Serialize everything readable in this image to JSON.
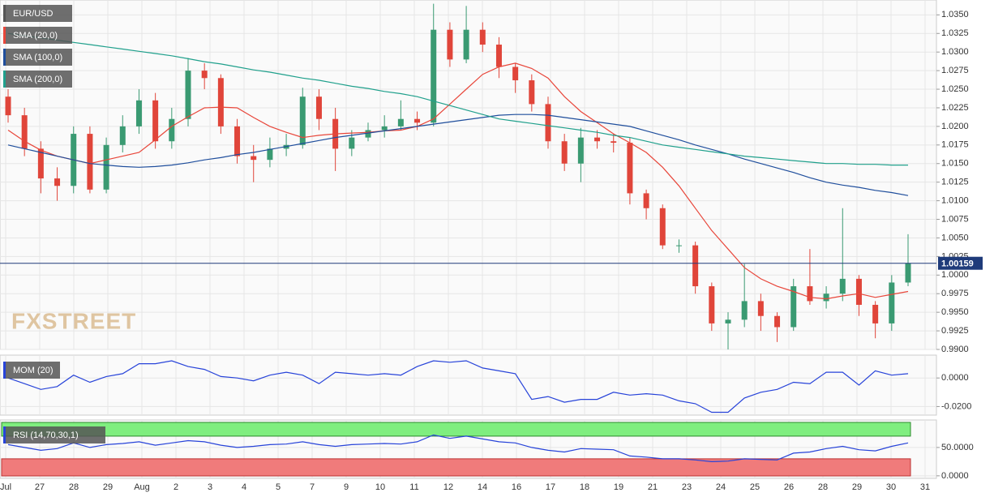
{
  "chart_data": [
    {
      "type": "candlestick",
      "title": "EUR/USD",
      "open": [
        1.024,
        1.0215,
        1.017,
        1.013,
        1.012,
        1.019,
        1.0115,
        1.0175,
        1.02,
        1.0235,
        1.018,
        1.021,
        1.0275,
        1.0265,
        1.02,
        1.016,
        1.0155,
        1.017,
        1.0175,
        1.024,
        1.021,
        1.017,
        1.0185,
        1.0195,
        1.02,
        1.021,
        1.0205,
        1.033,
        1.029,
        1.033,
        1.031,
        1.028,
        1.0262,
        1.023,
        1.018,
        1.015,
        1.0185,
        1.018,
        1.0178,
        1.011,
        1.009,
        1.004,
        1.004,
        0.9985,
        0.9935,
        0.994,
        0.9965,
        0.9945,
        0.993,
        0.9985,
        0.9965,
        0.9975,
        0.9995,
        0.996,
        0.9935,
        0.999
      ],
      "high": [
        1.025,
        1.0225,
        1.018,
        1.0145,
        1.02,
        1.02,
        1.0185,
        1.0215,
        1.025,
        1.0245,
        1.0225,
        1.0292,
        1.0285,
        1.027,
        1.021,
        1.0175,
        1.0185,
        1.019,
        1.0252,
        1.025,
        1.0225,
        1.0195,
        1.0205,
        1.0215,
        1.0235,
        1.022,
        1.0365,
        1.034,
        1.0362,
        1.034,
        1.032,
        1.0285,
        1.027,
        1.024,
        1.019,
        1.0198,
        1.0195,
        1.019,
        1.0185,
        1.0115,
        1.0095,
        1.0048,
        1.0045,
        0.999,
        0.995,
        1.0015,
        0.9975,
        0.995,
        0.9995,
        1.0035,
        0.9985,
        1.009,
        1.0,
        0.9965,
        1.0,
        1.0055
      ],
      "low": [
        1.0205,
        1.016,
        1.011,
        1.01,
        1.011,
        1.011,
        1.011,
        1.0165,
        1.019,
        1.017,
        1.017,
        1.02,
        1.025,
        1.019,
        1.015,
        1.0125,
        1.0145,
        1.016,
        1.017,
        1.0195,
        1.014,
        1.016,
        1.018,
        1.0185,
        1.0195,
        1.0195,
        1.02,
        1.028,
        1.0285,
        1.03,
        1.0265,
        1.0245,
        1.022,
        1.017,
        1.014,
        1.0125,
        1.017,
        1.0165,
        1.0095,
        1.0075,
        1.0035,
        1.003,
        0.9975,
        0.9925,
        0.99,
        0.993,
        0.9925,
        0.991,
        0.9925,
        0.996,
        0.9955,
        0.9965,
        0.9945,
        0.9915,
        0.9925,
        0.9985
      ],
      "close": [
        1.0215,
        1.017,
        1.013,
        1.012,
        1.019,
        1.0115,
        1.0175,
        1.02,
        1.0235,
        1.018,
        1.021,
        1.0275,
        1.0265,
        1.02,
        1.016,
        1.0155,
        1.017,
        1.0175,
        1.024,
        1.021,
        1.017,
        1.0185,
        1.0195,
        1.02,
        1.021,
        1.0205,
        1.033,
        1.029,
        1.033,
        1.031,
        1.028,
        1.0262,
        1.023,
        1.018,
        1.015,
        1.0185,
        1.018,
        1.0178,
        1.011,
        1.009,
        1.004,
        1.004,
        0.9985,
        0.9935,
        0.994,
        0.9965,
        0.9945,
        0.993,
        0.9985,
        0.9965,
        0.9975,
        0.9995,
        0.996,
        0.9935,
        0.999,
        1.0016
      ],
      "up_color": "#3a9a72",
      "down_color": "#e0453a",
      "series": [
        {
          "name": "SMA (20,0)",
          "color": "#e8463a",
          "values": [
            1.0195,
            1.018,
            1.0168,
            1.016,
            1.0155,
            1.015,
            1.0155,
            1.016,
            1.0165,
            1.0182,
            1.02,
            1.0213,
            1.0225,
            1.0226,
            1.0225,
            1.0212,
            1.02,
            1.0192,
            1.0185,
            1.0188,
            1.019,
            1.0191,
            1.0192,
            1.0194,
            1.0195,
            1.02,
            1.021,
            1.023,
            1.025,
            1.027,
            1.028,
            1.0285,
            1.0278,
            1.0265,
            1.024,
            1.022,
            1.0205,
            1.019,
            1.0178,
            1.0165,
            1.0145,
            1.012,
            1.009,
            1.006,
            1.0035,
            1.001,
            0.9995,
            0.9985,
            0.9978,
            0.997,
            0.9968,
            0.9972,
            0.9975,
            0.997,
            0.9974,
            0.9978
          ]
        },
        {
          "name": "SMA (100,0)",
          "color": "#1f4e9c",
          "values": [
            1.0175,
            1.017,
            1.0165,
            1.016,
            1.0155,
            1.015,
            1.0148,
            1.0146,
            1.0145,
            1.0146,
            1.0148,
            1.0151,
            1.0155,
            1.0158,
            1.0162,
            1.0165,
            1.0169,
            1.0173,
            1.0177,
            1.0181,
            1.0185,
            1.0188,
            1.0191,
            1.0194,
            1.0197,
            1.02,
            1.0203,
            1.0206,
            1.0209,
            1.0212,
            1.0215,
            1.0216,
            1.0216,
            1.0215,
            1.0212,
            1.0209,
            1.0206,
            1.0203,
            1.02,
            1.0194,
            1.0188,
            1.0182,
            1.0175,
            1.0169,
            1.0163,
            1.0156,
            1.015,
            1.0144,
            1.0138,
            1.0131,
            1.0125,
            1.0121,
            1.0118,
            1.0114,
            1.0111,
            1.0107
          ]
        },
        {
          "name": "SMA (200,0)",
          "color": "#20a08c",
          "values": [
            1.0325,
            1.0322,
            1.0319,
            1.0316,
            1.0313,
            1.031,
            1.0307,
            1.0304,
            1.0301,
            1.0298,
            1.0295,
            1.0291,
            1.0287,
            1.0284,
            1.028,
            1.0276,
            1.0273,
            1.0269,
            1.0265,
            1.0262,
            1.0258,
            1.0254,
            1.0251,
            1.0247,
            1.0244,
            1.024,
            1.0234,
            1.0228,
            1.0222,
            1.0216,
            1.021,
            1.0207,
            1.0204,
            1.0201,
            1.0198,
            1.0195,
            1.0192,
            1.0188,
            1.0185,
            1.018,
            1.0175,
            1.0172,
            1.0169,
            1.0166,
            1.0163,
            1.016,
            1.0158,
            1.0156,
            1.0154,
            1.0152,
            1.015,
            1.015,
            1.0149,
            1.0149,
            1.0148,
            1.0148
          ]
        }
      ],
      "last_price": 1.00159,
      "ylim": [
        0.99,
        1.037
      ],
      "yticks": [
        {
          "value": 0.99,
          "label": "0.9900"
        },
        {
          "value": 0.9925,
          "label": "0.9925"
        },
        {
          "value": 0.995,
          "label": "0.9950"
        },
        {
          "value": 0.9975,
          "label": "0.9975"
        },
        {
          "value": 1.0,
          "label": "1.0000"
        },
        {
          "value": 1.0025,
          "label": "1.0025"
        },
        {
          "value": 1.005,
          "label": "1.0050"
        },
        {
          "value": 1.0075,
          "label": "1.0075"
        },
        {
          "value": 1.01,
          "label": "1.0100"
        },
        {
          "value": 1.0125,
          "label": "1.0125"
        },
        {
          "value": 1.015,
          "label": "1.0150"
        },
        {
          "value": 1.0175,
          "label": "1.0175"
        },
        {
          "value": 1.02,
          "label": "1.0200"
        },
        {
          "value": 1.0225,
          "label": "1.0225"
        },
        {
          "value": 1.025,
          "label": "1.0250"
        },
        {
          "value": 1.0275,
          "label": "1.0275"
        },
        {
          "value": 1.03,
          "label": "1.0300"
        },
        {
          "value": 1.0325,
          "label": "1.0325"
        },
        {
          "value": 1.035,
          "label": "1.0350"
        }
      ],
      "grid": true,
      "x_labels": [
        "Jul",
        "27",
        "28",
        "29",
        "Aug",
        "2",
        "3",
        "4",
        "5",
        "7",
        "9",
        "10",
        "11",
        "12",
        "14",
        "16",
        "17",
        "18",
        "19",
        "21",
        "23",
        "24",
        "25",
        "26",
        "28",
        "29",
        "30",
        "31"
      ],
      "watermark": "FXSTREET"
    },
    {
      "type": "line",
      "title": "MOM (20)",
      "series": [
        {
          "name": "MOM (20)",
          "color": "#2743d9",
          "values": [
            0.0,
            -0.004,
            -0.008,
            -0.006,
            0.002,
            -0.003,
            0.001,
            0.003,
            0.01,
            0.01,
            0.012,
            0.008,
            0.006,
            0.001,
            0.0,
            -0.002,
            0.002,
            0.004,
            0.002,
            -0.004,
            0.004,
            0.003,
            0.002,
            0.003,
            0.002,
            0.008,
            0.012,
            0.011,
            0.012,
            0.007,
            0.005,
            0.003,
            -0.015,
            -0.013,
            -0.017,
            -0.015,
            -0.015,
            -0.01,
            -0.012,
            -0.011,
            -0.012,
            -0.016,
            -0.018,
            -0.024,
            -0.024,
            -0.014,
            -0.01,
            -0.008,
            -0.003,
            -0.004,
            0.004,
            0.004,
            -0.005,
            0.005,
            0.002,
            0.003
          ]
        }
      ],
      "ylim": [
        -0.026,
        0.016
      ],
      "yticks": [
        {
          "value": 0,
          "label": "0.0000"
        },
        {
          "value": -0.02,
          "label": "-0.0200"
        }
      ]
    },
    {
      "type": "line",
      "title": "RSI (14,70,30,1)",
      "series": [
        {
          "name": "RSI (14,70,30,1)",
          "color": "#2743d9",
          "values": [
            55,
            50,
            45,
            48,
            58,
            50,
            55,
            57,
            60,
            54,
            58,
            62,
            60,
            54,
            50,
            52,
            55,
            56,
            60,
            55,
            52,
            55,
            56,
            57,
            56,
            60,
            72,
            66,
            70,
            65,
            60,
            58,
            50,
            45,
            42,
            48,
            47,
            46,
            35,
            33,
            30,
            30,
            28,
            25,
            26,
            30,
            29,
            28,
            40,
            42,
            48,
            52,
            46,
            44,
            52,
            58
          ]
        }
      ],
      "overbought": 70,
      "oversold": 30,
      "ylim": [
        -4.5,
        98.5
      ],
      "yticks": [
        {
          "value": 50,
          "label": "50.0000"
        },
        {
          "value": 0,
          "label": "0.0000"
        }
      ]
    }
  ]
}
